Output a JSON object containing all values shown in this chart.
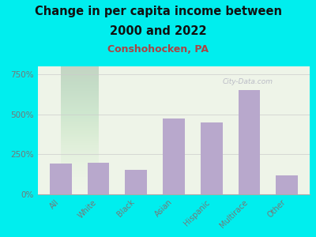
{
  "title_line1": "Change in per capita income between",
  "title_line2": "2000 and 2022",
  "subtitle": "Conshohocken, PA",
  "categories": [
    "All",
    "White",
    "Black",
    "Asian",
    "Hispanic",
    "Multirace",
    "Other"
  ],
  "values": [
    195,
    200,
    155,
    475,
    450,
    650,
    120
  ],
  "bar_color": "#b8a8cc",
  "title_fontsize": 10.5,
  "subtitle_fontsize": 9,
  "subtitle_color": "#aa4444",
  "title_color": "#111111",
  "background_color": "#00eeee",
  "ylim": [
    0,
    800
  ],
  "yticks": [
    0,
    250,
    500,
    750
  ],
  "ytick_labels": [
    "0%",
    "250%",
    "500%",
    "750%"
  ],
  "watermark": "City-Data.com",
  "watermark_color": "#aaaabb",
  "tick_color": "#777777",
  "grid_color": "#cccccc"
}
